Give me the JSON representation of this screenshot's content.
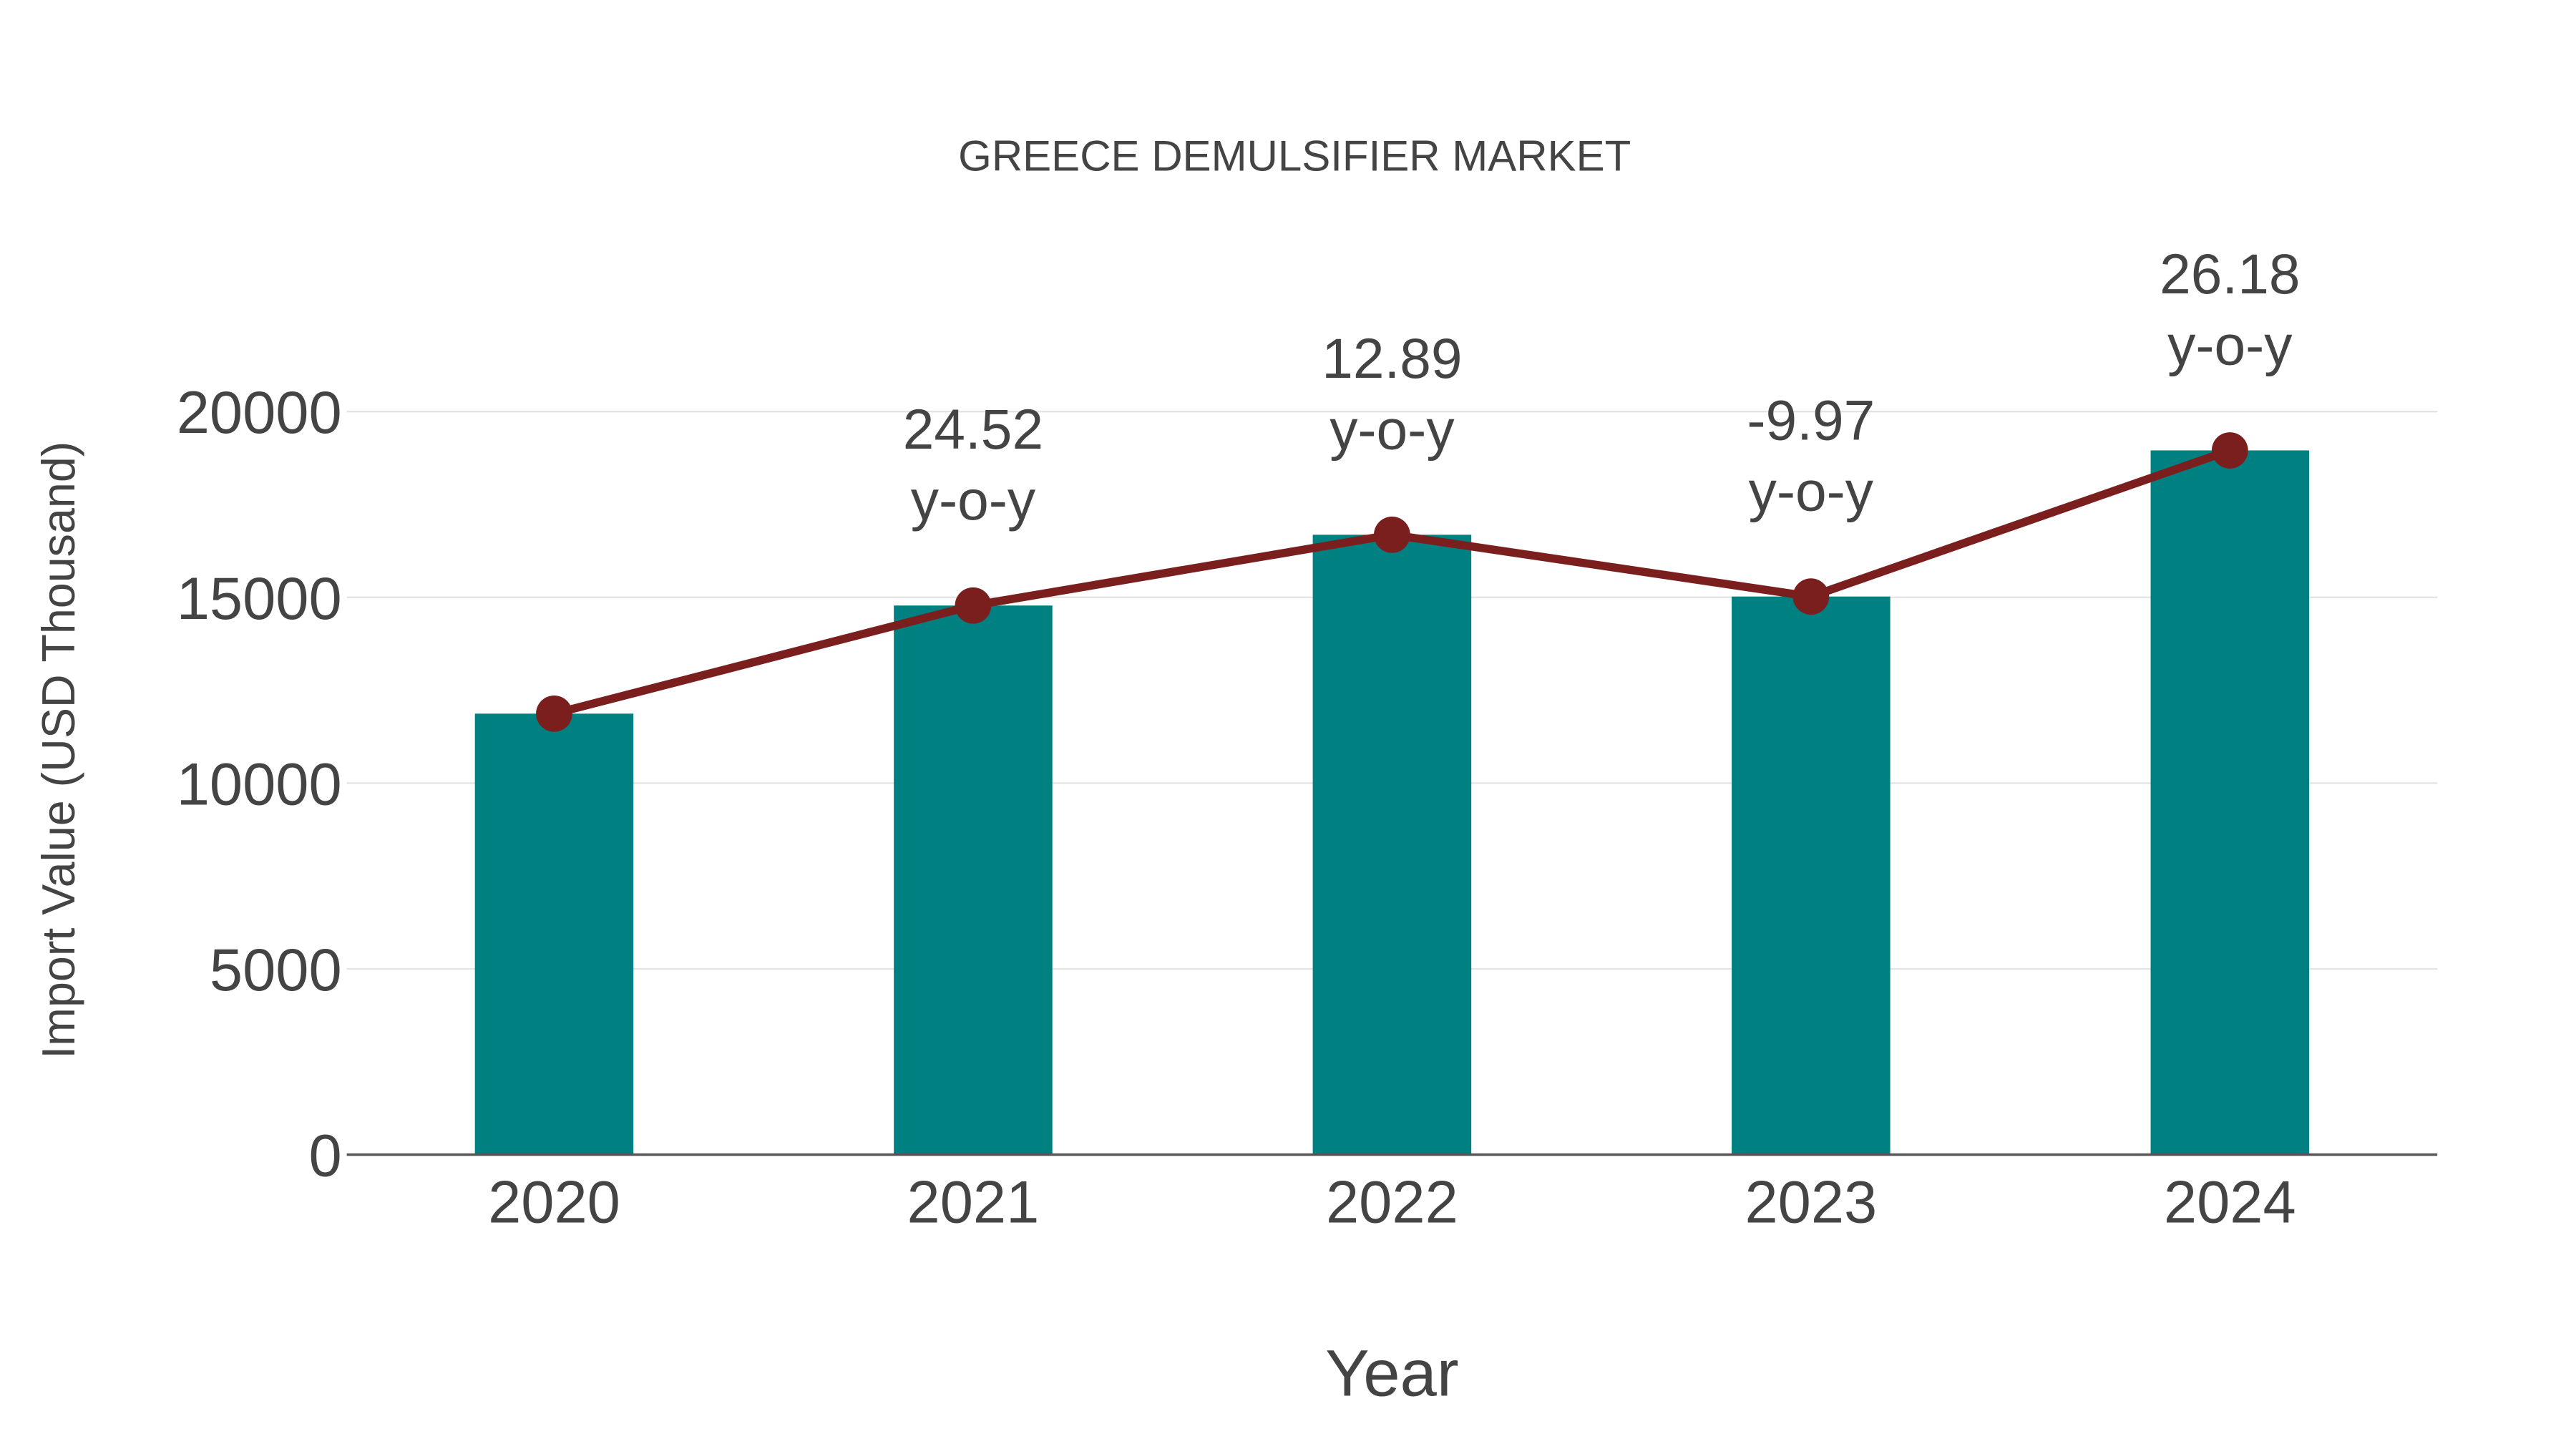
{
  "chart_data": {
    "type": "bar",
    "title": "GREECE DEMULSIFIER MARKET",
    "xlabel": "Year",
    "ylabel": "Import Value (USD Thousand)",
    "categories": [
      "2020",
      "2021",
      "2022",
      "2023",
      "2024"
    ],
    "values": [
      11870,
      14780,
      16685,
      15022,
      18955
    ],
    "yoy_labels": [
      null,
      "24.52",
      "12.89",
      "-9.97",
      "26.18"
    ],
    "yoy_suffix": "y-o-y",
    "ylim": [
      0,
      20000
    ],
    "yticks": [
      0,
      5000,
      10000,
      15000,
      20000
    ],
    "ytick_labels": [
      "0",
      "5000",
      "10000",
      "15000",
      "20000"
    ],
    "grid": true,
    "series": [
      {
        "name": "Import Value",
        "type": "bar",
        "color": "#008080",
        "values": [
          11870,
          14780,
          16685,
          15022,
          18955
        ]
      },
      {
        "name": "Trend",
        "type": "line",
        "color": "#7b1e1e",
        "values": [
          11870,
          14780,
          16685,
          15022,
          18955
        ]
      }
    ]
  }
}
